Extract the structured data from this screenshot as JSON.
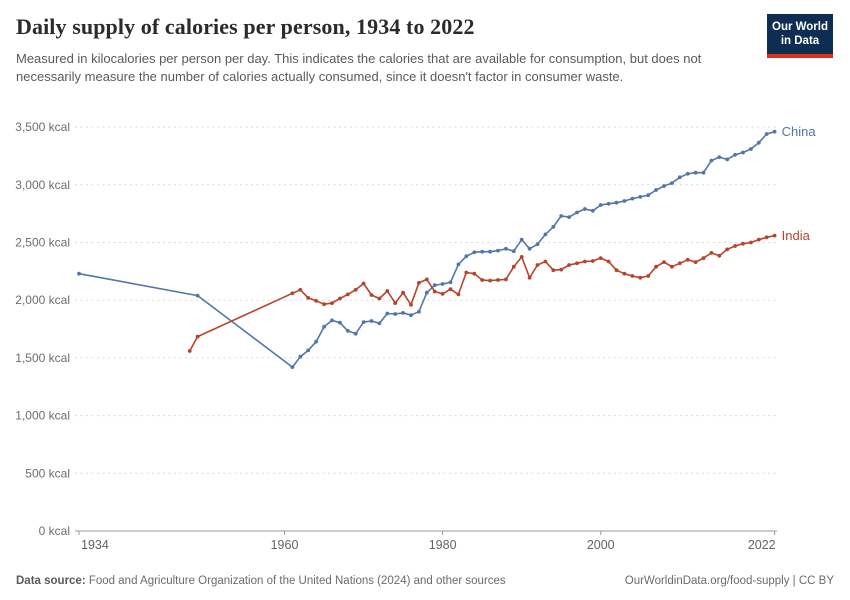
{
  "header": {
    "title": "Daily supply of calories per person, 1934 to 2022",
    "subtitle": "Measured in kilocalories per person per day. This indicates the calories that are available for consumption, but does not necessarily measure the number of calories actually consumed, since it doesn't factor in consumer waste.",
    "logo": {
      "line1": "Our World",
      "line2": "in Data",
      "bg_color": "#0d2d52",
      "bar_color": "#e0301c"
    }
  },
  "footer": {
    "source_label": "Data source:",
    "source_text": " Food and Agriculture Organization of the United Nations (2024) and other sources",
    "link_text": "OurWorldinData.org/food-supply | CC BY"
  },
  "chart_data": {
    "type": "line",
    "title": "Daily supply of calories per person, 1934 to 2022",
    "unit": "kcal",
    "xlabel": "",
    "ylabel": "",
    "xlim": [
      1934,
      2022
    ],
    "ylim": [
      0,
      3500
    ],
    "x_ticks": [
      1934,
      1960,
      1980,
      2000,
      2022
    ],
    "y_ticks": [
      0,
      500,
      1000,
      1500,
      2000,
      2500,
      3000,
      3500
    ],
    "grid": "horizontal-dashed",
    "legend": "end-of-line-labels",
    "colors": {
      "axis_text": "#6e6e6e",
      "tick_text": "#636363",
      "grid_line": "#dadada",
      "axis_line": "#9a9a9a"
    },
    "series": [
      {
        "name": "China",
        "color": "#5276a7",
        "points": [
          [
            1934,
            2230
          ],
          [
            1949,
            2040
          ],
          [
            1961,
            1420
          ],
          [
            1962,
            1510
          ],
          [
            1963,
            1565
          ],
          [
            1964,
            1640
          ],
          [
            1965,
            1770
          ],
          [
            1966,
            1825
          ],
          [
            1967,
            1805
          ],
          [
            1968,
            1735
          ],
          [
            1969,
            1710
          ],
          [
            1970,
            1810
          ],
          [
            1971,
            1820
          ],
          [
            1972,
            1800
          ],
          [
            1973,
            1885
          ],
          [
            1974,
            1880
          ],
          [
            1975,
            1890
          ],
          [
            1976,
            1870
          ],
          [
            1977,
            1900
          ],
          [
            1978,
            2065
          ],
          [
            1979,
            2130
          ],
          [
            1980,
            2140
          ],
          [
            1981,
            2155
          ],
          [
            1982,
            2310
          ],
          [
            1983,
            2380
          ],
          [
            1984,
            2415
          ],
          [
            1985,
            2420
          ],
          [
            1986,
            2420
          ],
          [
            1987,
            2430
          ],
          [
            1988,
            2445
          ],
          [
            1989,
            2425
          ],
          [
            1990,
            2525
          ],
          [
            1991,
            2445
          ],
          [
            1992,
            2485
          ],
          [
            1993,
            2570
          ],
          [
            1994,
            2635
          ],
          [
            1995,
            2730
          ],
          [
            1996,
            2720
          ],
          [
            1997,
            2760
          ],
          [
            1998,
            2790
          ],
          [
            1999,
            2775
          ],
          [
            2000,
            2825
          ],
          [
            2001,
            2835
          ],
          [
            2002,
            2845
          ],
          [
            2003,
            2860
          ],
          [
            2004,
            2880
          ],
          [
            2005,
            2895
          ],
          [
            2006,
            2910
          ],
          [
            2007,
            2955
          ],
          [
            2008,
            2990
          ],
          [
            2009,
            3015
          ],
          [
            2010,
            3065
          ],
          [
            2011,
            3095
          ],
          [
            2012,
            3105
          ],
          [
            2013,
            3105
          ],
          [
            2014,
            3210
          ],
          [
            2015,
            3240
          ],
          [
            2016,
            3220
          ],
          [
            2017,
            3260
          ],
          [
            2018,
            3280
          ],
          [
            2019,
            3310
          ],
          [
            2020,
            3365
          ],
          [
            2021,
            3440
          ],
          [
            2022,
            3460
          ]
        ]
      },
      {
        "name": "India",
        "color": "#b8432a",
        "points": [
          [
            1948,
            1560
          ],
          [
            1949,
            1685
          ],
          [
            1961,
            2060
          ],
          [
            1962,
            2090
          ],
          [
            1963,
            2020
          ],
          [
            1964,
            1995
          ],
          [
            1965,
            1965
          ],
          [
            1966,
            1975
          ],
          [
            1967,
            2015
          ],
          [
            1968,
            2050
          ],
          [
            1969,
            2090
          ],
          [
            1970,
            2145
          ],
          [
            1971,
            2045
          ],
          [
            1972,
            2015
          ],
          [
            1973,
            2080
          ],
          [
            1974,
            1975
          ],
          [
            1975,
            2065
          ],
          [
            1976,
            1960
          ],
          [
            1977,
            2150
          ],
          [
            1978,
            2180
          ],
          [
            1979,
            2075
          ],
          [
            1980,
            2055
          ],
          [
            1981,
            2095
          ],
          [
            1982,
            2050
          ],
          [
            1983,
            2240
          ],
          [
            1984,
            2230
          ],
          [
            1985,
            2175
          ],
          [
            1986,
            2170
          ],
          [
            1987,
            2175
          ],
          [
            1988,
            2180
          ],
          [
            1989,
            2290
          ],
          [
            1990,
            2375
          ],
          [
            1991,
            2195
          ],
          [
            1992,
            2305
          ],
          [
            1993,
            2335
          ],
          [
            1994,
            2260
          ],
          [
            1995,
            2265
          ],
          [
            1996,
            2305
          ],
          [
            1997,
            2320
          ],
          [
            1998,
            2335
          ],
          [
            1999,
            2340
          ],
          [
            2000,
            2365
          ],
          [
            2001,
            2335
          ],
          [
            2002,
            2260
          ],
          [
            2003,
            2230
          ],
          [
            2004,
            2210
          ],
          [
            2005,
            2195
          ],
          [
            2006,
            2210
          ],
          [
            2007,
            2290
          ],
          [
            2008,
            2330
          ],
          [
            2009,
            2290
          ],
          [
            2010,
            2320
          ],
          [
            2011,
            2350
          ],
          [
            2012,
            2330
          ],
          [
            2013,
            2365
          ],
          [
            2014,
            2410
          ],
          [
            2015,
            2385
          ],
          [
            2016,
            2440
          ],
          [
            2017,
            2470
          ],
          [
            2018,
            2490
          ],
          [
            2019,
            2500
          ],
          [
            2020,
            2525
          ],
          [
            2021,
            2545
          ],
          [
            2022,
            2560
          ]
        ]
      }
    ]
  }
}
